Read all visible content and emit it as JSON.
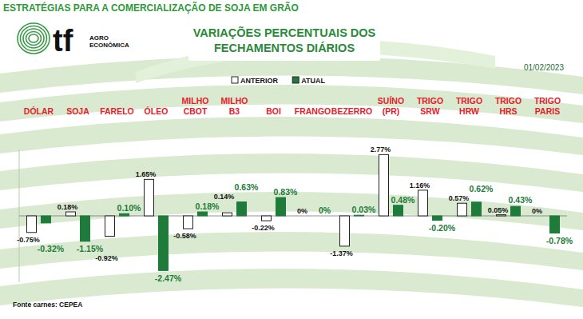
{
  "chart_data": {
    "type": "bar",
    "title": "VARIAÇÕES PERCENTUAIS DOS FECHAMENTOS DIÁRIOS",
    "annotations": [
      "ESTRATÉGIAS PARA A COMERCIALIZAÇÃO DE SOJA EM GRÃO",
      "01/02/2023",
      "Fonte carnes: CEPEA",
      "tf",
      "AGRO ECONÔMICA"
    ],
    "categories": [
      "DÓLAR",
      "SOJA",
      "FARELO",
      "ÓLEO",
      "MILHO CBOT",
      "MILHO B3",
      "BOI",
      "FRANGO",
      "BEZERRO",
      "SUÍNO (PR)",
      "TRIGO SRW",
      "TRIGO HRW",
      "TRIGO HRS",
      "TRIGO PARIS"
    ],
    "series": [
      {
        "name": "ANTERIOR",
        "color": "#ffffff",
        "values": [
          -0.75,
          0.18,
          -0.92,
          1.65,
          -0.58,
          0.14,
          -0.22,
          0,
          -1.37,
          2.77,
          1.16,
          0.57,
          0.05,
          0
        ],
        "value_labels": [
          "-0.75%",
          "0.18%",
          "-0.92%",
          "1.65%",
          "-0.58%",
          "0.14%",
          "-0.22%",
          "0%",
          "-1.37%",
          "2.77%",
          "1.16%",
          "0.57%",
          "0.05%",
          "0%"
        ]
      },
      {
        "name": "ATUAL",
        "color": "#1e7b3a",
        "values": [
          -0.32,
          -1.15,
          0.1,
          -2.47,
          0.18,
          0.63,
          0.83,
          0,
          0.03,
          0.48,
          -0.2,
          0.62,
          0.43,
          -0.78
        ],
        "value_labels": [
          "-0.32%",
          "-1.15%",
          "0.10%",
          "-2.47%",
          "0.18%",
          "0.63%",
          "0.83%",
          "0%",
          "0.03%",
          "0.48%",
          "-0.20%",
          "0.62%",
          "0.43%",
          "-0.78%"
        ]
      }
    ],
    "ylim": [
      -3,
      3
    ],
    "yticks": [
      0
    ],
    "tick_labels": false,
    "grid": false,
    "legend": "top",
    "data_labels": true
  }
}
